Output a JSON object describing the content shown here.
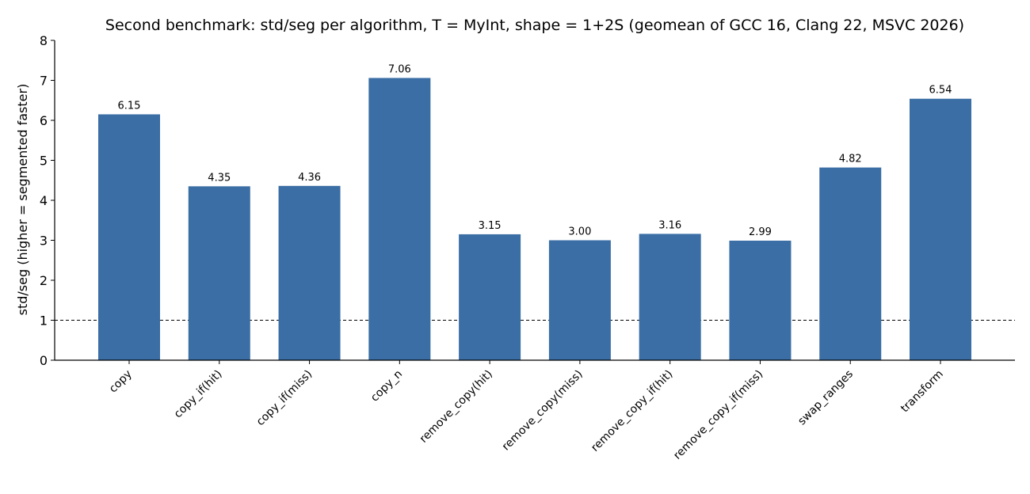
{
  "chart_data": {
    "type": "bar",
    "title": "Second benchmark: std/seg per algorithm, T = MyInt, shape = 1+2S (geomean of GCC 16, Clang 22, MSVC 2026)",
    "xlabel": "",
    "ylabel": "std/seg  (higher = segmented faster)",
    "ylim": [
      0,
      8
    ],
    "yticks": [
      0,
      1,
      2,
      3,
      4,
      5,
      6,
      7,
      8
    ],
    "categories": [
      "copy",
      "copy_if(hit)",
      "copy_if(miss)",
      "copy_n",
      "remove_copy(hit)",
      "remove_copy(miss)",
      "remove_copy_if(hit)",
      "remove_copy_if(miss)",
      "swap_ranges",
      "transform"
    ],
    "values": [
      6.15,
      4.35,
      4.36,
      7.06,
      3.15,
      3.0,
      3.16,
      2.99,
      4.82,
      6.54
    ],
    "value_labels": [
      "6.15",
      "4.35",
      "4.36",
      "7.06",
      "3.15",
      "3.00",
      "3.16",
      "2.99",
      "4.82",
      "6.54"
    ],
    "reference_line": {
      "y": 1,
      "style": "dashed"
    },
    "grid": false,
    "bar_color": "#3a6ea5",
    "axis_color": "#000000"
  }
}
